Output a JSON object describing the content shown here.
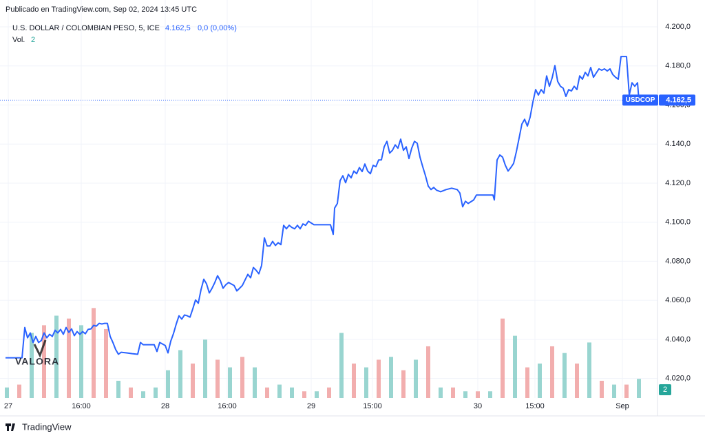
{
  "header": "Publicado en TradingView.com, Sep 02, 2024 13:45 UTC",
  "footer": "TradingView",
  "chart_data": {
    "type": "line",
    "title": "U.S. DOLLAR / COLOMBIAN PESO, 5, ICE",
    "last_price": {
      "value": 4162.5,
      "label": "4.162,5"
    },
    "change": "0,0 (0,00%)",
    "volume_label": "Vol.",
    "x": [
      8,
      16,
      24,
      32,
      36,
      40,
      44,
      48,
      52,
      56,
      60,
      64,
      68,
      72,
      76,
      80,
      84,
      88,
      92,
      96,
      100,
      104,
      108,
      112,
      116,
      120,
      124,
      128,
      132,
      136,
      140,
      144,
      148,
      152,
      156,
      160,
      164,
      168,
      172,
      176,
      184,
      192,
      200,
      204,
      208,
      216,
      224,
      228,
      232,
      240,
      244,
      248,
      252,
      256,
      260,
      264,
      268,
      272,
      276,
      280,
      284,
      288,
      292,
      296,
      300,
      304,
      308,
      312,
      316,
      320,
      324,
      328,
      332,
      340,
      344,
      348,
      352,
      356,
      360,
      364,
      368,
      372,
      376,
      380,
      384,
      388,
      392,
      396,
      400,
      404,
      408,
      412,
      416,
      420,
      424,
      428,
      432,
      436,
      440,
      444,
      448,
      456,
      464,
      472,
      480,
      484,
      486,
      490,
      494,
      498,
      502,
      506,
      510,
      514,
      518,
      522,
      526,
      530,
      534,
      538,
      542,
      546,
      550,
      554,
      558,
      562,
      566,
      570,
      574,
      578,
      582,
      586,
      590,
      594,
      598,
      602,
      606,
      610,
      614,
      618,
      622,
      626,
      630,
      634,
      640,
      648,
      656,
      664,
      668,
      672,
      676,
      680,
      688,
      692,
      700,
      708,
      716,
      718,
      722,
      726,
      730,
      734,
      738,
      742,
      746,
      750,
      754,
      758,
      762,
      766,
      770,
      774,
      778,
      782,
      786,
      790,
      794,
      798,
      802,
      806,
      810,
      814,
      818,
      822,
      826,
      830,
      834,
      838,
      842,
      846,
      850,
      854,
      858,
      862,
      866,
      870,
      874,
      878,
      882,
      886,
      890,
      894,
      898,
      902,
      906,
      910,
      914,
      918,
      922,
      926,
      928
    ],
    "series": [
      {
        "name": "USDCOP",
        "color": "#2962ff",
        "values": [
          4030.6,
          4030.6,
          4030.6,
          4030.6,
          4046.1,
          4040.8,
          4043.3,
          4038.4,
          4041.5,
          4038.4,
          4039.4,
          4043.3,
          4040.8,
          4042.6,
          4041.5,
          4044.7,
          4043.3,
          4045.1,
          4042.6,
          4046.1,
          4043.6,
          4045.4,
          4041.9,
          4044,
          4042.6,
          4044,
          4042.9,
          4045.1,
          4045.4,
          4047.2,
          4046.8,
          4048.2,
          4047.9,
          4048.2,
          4048.2,
          4041.5,
          4038.4,
          4034.8,
          4032.4,
          4033.4,
          4033.1,
          4032.7,
          4032.4,
          4038.4,
          4037.3,
          4037.3,
          4037.3,
          4033.8,
          4038.4,
          4036.9,
          4033.1,
          4039.1,
          4043,
          4047.9,
          4052.1,
          4050.4,
          4052.5,
          4052.1,
          4051.4,
          4055.6,
          4060.2,
          4058.5,
          4065.5,
          4070.8,
          4068.4,
          4063.8,
          4066.2,
          4069.1,
          4072.6,
          4070.1,
          4066.2,
          4068,
          4069.1,
          4067.6,
          4064.8,
          4066.2,
          4067.6,
          4070.5,
          4073.3,
          4071.5,
          4076.8,
          4075.4,
          4073.6,
          4077.9,
          4092,
          4087.8,
          4087.8,
          4090.2,
          4088.1,
          4089.5,
          4088.5,
          4098.4,
          4096.6,
          4098.4,
          4097.3,
          4096.6,
          4098.4,
          4096.6,
          4099.1,
          4098.4,
          4100.5,
          4098.7,
          4098.7,
          4098.7,
          4098.7,
          4093.8,
          4107.2,
          4109.6,
          4121.3,
          4123.8,
          4120.2,
          4124.5,
          4122.7,
          4126.2,
          4124.8,
          4128,
          4125.9,
          4129.8,
          4126.2,
          4124.8,
          4129.1,
          4128.4,
          4131.9,
          4131.9,
          4138.6,
          4141.4,
          4135.4,
          4136.8,
          4139.6,
          4137.9,
          4142.5,
          4136.8,
          4138.6,
          4132.6,
          4137.9,
          4141.4,
          4140.4,
          4133.3,
          4128.4,
          4123.8,
          4118.5,
          4116.7,
          4117.8,
          4116.4,
          4115.6,
          4116.7,
          4117.4,
          4116.7,
          4114.9,
          4107.9,
          4110.7,
          4109.6,
          4111.4,
          4113.9,
          4113.9,
          4113.9,
          4113.9,
          4111.4,
          4131.9,
          4134.4,
          4133.3,
          4129.1,
          4126.2,
          4128,
          4130.1,
          4136.1,
          4143.1,
          4150.2,
          4152.7,
          4149.2,
          4153.8,
          4161.5,
          4167.9,
          4165.1,
          4167.9,
          4166.1,
          4174.9,
          4169.6,
          4173.9,
          4180.2,
          4172.1,
          4169.6,
          4168.6,
          4164.4,
          4167.9,
          4167.2,
          4169.6,
          4167.9,
          4174.9,
          4173.2,
          4176.7,
          4174.9,
          4179.2,
          4174.2,
          4176.4,
          4178.5,
          4177.8,
          4178.5,
          4177.4,
          4178.5,
          4175.6,
          4174.2,
          4173.2,
          4184.8,
          4184.8,
          4184.8,
          4165.1,
          4171.4,
          4169.6,
          4171.4,
          4162.5
        ]
      }
    ],
    "volume": {
      "axis": "y2",
      "x": [
        10,
        28,
        46,
        64,
        82,
        100,
        118,
        136,
        154,
        172,
        190,
        208,
        226,
        244,
        262,
        280,
        298,
        316,
        334,
        352,
        370,
        388,
        406,
        424,
        442,
        460,
        478,
        496,
        514,
        532,
        550,
        568,
        586,
        604,
        622,
        640,
        658,
        676,
        694,
        712,
        730,
        748,
        766,
        784,
        802,
        820,
        838,
        856,
        874,
        892,
        910,
        928
      ],
      "values": [
        1.1,
        1.4,
        6.8,
        7.6,
        8.6,
        8.3,
        7.6,
        9.4,
        7.2,
        1.8,
        1.1,
        0.7,
        1.1,
        2.9,
        5,
        3.6,
        6.1,
        4,
        3.2,
        4.3,
        3.2,
        1.1,
        1.4,
        1.1,
        0.7,
        0.7,
        1.1,
        6.8,
        3.6,
        3.2,
        4,
        4.3,
        2.9,
        4,
        5.4,
        1.1,
        1.1,
        0.7,
        0.7,
        0.7,
        8.3,
        6.5,
        3.2,
        3.6,
        5.4,
        4.7,
        3.6,
        5.8,
        1.8,
        1.4,
        1.4,
        2
      ],
      "colors": [
        "#80cbc4",
        "#ef9a9a",
        "#80cbc4",
        "#ef9a9a",
        "#80cbc4",
        "#ef9a9a",
        "#80cbc4",
        "#ef9a9a",
        "#ef9a9a",
        "#80cbc4",
        "#ef9a9a",
        "#80cbc4",
        "#80cbc4",
        "#80cbc4",
        "#80cbc4",
        "#ef9a9a",
        "#80cbc4",
        "#ef9a9a",
        "#80cbc4",
        "#ef9a9a",
        "#80cbc4",
        "#ef9a9a",
        "#80cbc4",
        "#80cbc4",
        "#ef9a9a",
        "#80cbc4",
        "#ef9a9a",
        "#80cbc4",
        "#ef9a9a",
        "#80cbc4",
        "#ef9a9a",
        "#80cbc4",
        "#ef9a9a",
        "#80cbc4",
        "#ef9a9a",
        "#80cbc4",
        "#ef9a9a",
        "#80cbc4",
        "#ef9a9a",
        "#80cbc4",
        "#ef9a9a",
        "#80cbc4",
        "#ef9a9a",
        "#80cbc4",
        "#ef9a9a",
        "#80cbc4",
        "#ef9a9a",
        "#80cbc4",
        "#ef9a9a",
        "#80cbc4",
        "#ef9a9a",
        "#80cbc4"
      ]
    },
    "xlim": [
      0,
      955
    ],
    "xticks": [
      {
        "value": 12,
        "label": "27"
      },
      {
        "value": 118,
        "label": "16:00"
      },
      {
        "value": 240,
        "label": "28"
      },
      {
        "value": 330,
        "label": "16:00"
      },
      {
        "value": 452,
        "label": "29"
      },
      {
        "value": 541,
        "label": "15:00"
      },
      {
        "value": 694,
        "label": "30"
      },
      {
        "value": 777,
        "label": "15:00"
      },
      {
        "value": 904,
        "label": "Sep"
      }
    ],
    "ylim": [
      4010,
      4206
    ],
    "yticks": [
      {
        "value": 4020,
        "label": "4.020,0"
      },
      {
        "value": 4040,
        "label": "4.040,0"
      },
      {
        "value": 4060,
        "label": "4.060,0"
      },
      {
        "value": 4080,
        "label": "4.080,0"
      },
      {
        "value": 4100,
        "label": "4.100,0"
      },
      {
        "value": 4120,
        "label": "4.120,0"
      },
      {
        "value": 4140,
        "label": "4.140,0"
      },
      {
        "value": 4160,
        "label": "4.160,0"
      },
      {
        "value": 4180,
        "label": "4.180,0"
      },
      {
        "value": 4200,
        "label": "4.200,0"
      }
    ],
    "y2lim": [
      0,
      40
    ],
    "grid": true
  }
}
